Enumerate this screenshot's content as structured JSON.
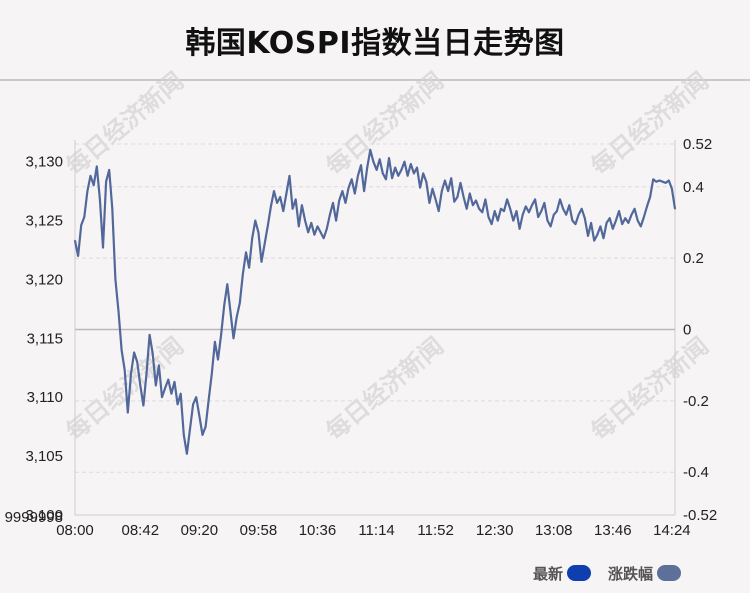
{
  "title": "韩国KOSPI指数当日走势图",
  "watermark": "每日经济新闻",
  "legend": [
    {
      "label": "最新",
      "color": "#0f3fae"
    },
    {
      "label": "涨跌幅",
      "color": "#5c7099"
    }
  ],
  "chart_data": {
    "type": "line",
    "title": "韩国KOSPI指数当日走势图",
    "series": [
      {
        "name": "最新",
        "axis": "left",
        "color": "#52689a",
        "points": [
          [
            "08:00",
            3123.3
          ],
          [
            "08:02",
            3122.0
          ],
          [
            "08:04",
            3124.6
          ],
          [
            "08:06",
            3125.3
          ],
          [
            "08:08",
            3127.5
          ],
          [
            "08:10",
            3128.8
          ],
          [
            "08:12",
            3128.0
          ],
          [
            "08:14",
            3129.6
          ],
          [
            "08:16",
            3126.8
          ],
          [
            "08:18",
            3122.7
          ],
          [
            "08:20",
            3128.3
          ],
          [
            "08:22",
            3129.3
          ],
          [
            "08:24",
            3126.0
          ],
          [
            "08:26",
            3120.0
          ],
          [
            "08:28",
            3117.3
          ],
          [
            "08:30",
            3114.0
          ],
          [
            "08:32",
            3112.3
          ],
          [
            "08:34",
            3108.7
          ],
          [
            "08:36",
            3112.0
          ],
          [
            "08:38",
            3113.8
          ],
          [
            "08:40",
            3113.0
          ],
          [
            "08:42",
            3111.0
          ],
          [
            "08:44",
            3109.3
          ],
          [
            "08:46",
            3112.0
          ],
          [
            "08:48",
            3115.3
          ],
          [
            "08:50",
            3113.7
          ],
          [
            "08:52",
            3111.0
          ],
          [
            "08:54",
            3112.7
          ],
          [
            "08:56",
            3110.0
          ],
          [
            "08:58",
            3110.8
          ],
          [
            "09:00",
            3111.5
          ],
          [
            "09:02",
            3110.3
          ],
          [
            "09:04",
            3111.3
          ],
          [
            "09:06",
            3109.4
          ],
          [
            "09:08",
            3110.3
          ],
          [
            "09:10",
            3106.8
          ],
          [
            "09:12",
            3105.2
          ],
          [
            "09:14",
            3107.3
          ],
          [
            "09:16",
            3109.4
          ],
          [
            "09:18",
            3110.0
          ],
          [
            "09:20",
            3108.4
          ],
          [
            "09:22",
            3106.8
          ],
          [
            "09:24",
            3107.5
          ],
          [
            "09:26",
            3109.8
          ],
          [
            "09:28",
            3112.0
          ],
          [
            "09:30",
            3114.7
          ],
          [
            "09:32",
            3113.2
          ],
          [
            "09:34",
            3115.3
          ],
          [
            "09:36",
            3117.8
          ],
          [
            "09:38",
            3119.6
          ],
          [
            "09:40",
            3117.3
          ],
          [
            "09:42",
            3115.0
          ],
          [
            "09:44",
            3116.8
          ],
          [
            "09:46",
            3118.0
          ],
          [
            "09:48",
            3120.5
          ],
          [
            "09:50",
            3122.3
          ],
          [
            "09:52",
            3121.0
          ],
          [
            "09:54",
            3123.5
          ],
          [
            "09:56",
            3125.0
          ],
          [
            "09:58",
            3124.0
          ],
          [
            "10:00",
            3121.5
          ],
          [
            "10:02",
            3123.0
          ],
          [
            "10:04",
            3124.5
          ],
          [
            "10:06",
            3126.2
          ],
          [
            "10:08",
            3127.5
          ],
          [
            "10:10",
            3126.5
          ],
          [
            "10:12",
            3127.0
          ],
          [
            "10:14",
            3125.8
          ],
          [
            "10:16",
            3127.3
          ],
          [
            "10:18",
            3128.8
          ],
          [
            "10:20",
            3126.0
          ],
          [
            "10:22",
            3126.8
          ],
          [
            "10:24",
            3124.5
          ],
          [
            "10:26",
            3126.3
          ],
          [
            "10:28",
            3125.0
          ],
          [
            "10:30",
            3124.0
          ],
          [
            "10:32",
            3124.8
          ],
          [
            "10:34",
            3123.8
          ],
          [
            "10:36",
            3124.5
          ],
          [
            "10:38",
            3124.0
          ],
          [
            "10:40",
            3123.5
          ],
          [
            "10:42",
            3124.3
          ],
          [
            "10:44",
            3125.5
          ],
          [
            "10:46",
            3126.5
          ],
          [
            "10:48",
            3125.0
          ],
          [
            "10:50",
            3126.7
          ],
          [
            "10:52",
            3127.5
          ],
          [
            "10:54",
            3126.5
          ],
          [
            "10:56",
            3127.8
          ],
          [
            "10:58",
            3128.5
          ],
          [
            "11:00",
            3127.3
          ],
          [
            "11:02",
            3128.8
          ],
          [
            "11:04",
            3129.7
          ],
          [
            "11:06",
            3127.5
          ],
          [
            "11:08",
            3129.5
          ],
          [
            "11:10",
            3131.0
          ],
          [
            "11:12",
            3130.0
          ],
          [
            "11:14",
            3129.3
          ],
          [
            "11:16",
            3130.2
          ],
          [
            "11:18",
            3129.0
          ],
          [
            "11:20",
            3128.5
          ],
          [
            "11:22",
            3130.3
          ],
          [
            "11:24",
            3128.6
          ],
          [
            "11:26",
            3129.5
          ],
          [
            "11:28",
            3128.8
          ],
          [
            "11:30",
            3129.3
          ],
          [
            "11:32",
            3130.0
          ],
          [
            "11:34",
            3128.8
          ],
          [
            "11:36",
            3129.8
          ],
          [
            "11:38",
            3129.0
          ],
          [
            "11:40",
            3129.5
          ],
          [
            "11:42",
            3127.8
          ],
          [
            "11:44",
            3129.0
          ],
          [
            "11:46",
            3128.3
          ],
          [
            "11:48",
            3126.5
          ],
          [
            "11:50",
            3127.7
          ],
          [
            "11:52",
            3126.8
          ],
          [
            "11:54",
            3125.8
          ],
          [
            "11:56",
            3127.5
          ],
          [
            "11:58",
            3128.4
          ],
          [
            "12:00",
            3127.5
          ],
          [
            "12:02",
            3128.6
          ],
          [
            "12:04",
            3126.6
          ],
          [
            "12:06",
            3127.0
          ],
          [
            "12:08",
            3128.2
          ],
          [
            "12:10",
            3127.0
          ],
          [
            "12:12",
            3126.0
          ],
          [
            "12:14",
            3127.3
          ],
          [
            "12:16",
            3126.3
          ],
          [
            "12:18",
            3126.7
          ],
          [
            "12:20",
            3126.0
          ],
          [
            "12:22",
            3125.7
          ],
          [
            "12:24",
            3126.8
          ],
          [
            "12:26",
            3125.3
          ],
          [
            "12:28",
            3124.7
          ],
          [
            "12:30",
            3125.8
          ],
          [
            "12:32",
            3125.0
          ],
          [
            "12:34",
            3126.0
          ],
          [
            "12:36",
            3125.8
          ],
          [
            "12:38",
            3126.8
          ],
          [
            "12:40",
            3126.0
          ],
          [
            "12:42",
            3125.0
          ],
          [
            "12:44",
            3125.8
          ],
          [
            "12:46",
            3124.3
          ],
          [
            "12:48",
            3125.5
          ],
          [
            "12:50",
            3126.2
          ],
          [
            "12:52",
            3125.7
          ],
          [
            "12:54",
            3126.3
          ],
          [
            "12:56",
            3126.8
          ],
          [
            "12:58",
            3125.3
          ],
          [
            "13:00",
            3125.8
          ],
          [
            "13:02",
            3126.5
          ],
          [
            "13:04",
            3125.0
          ],
          [
            "13:06",
            3124.5
          ],
          [
            "13:08",
            3125.5
          ],
          [
            "13:10",
            3125.8
          ],
          [
            "13:12",
            3126.8
          ],
          [
            "13:14",
            3126.0
          ],
          [
            "13:16",
            3125.5
          ],
          [
            "13:18",
            3126.3
          ],
          [
            "13:20",
            3125.0
          ],
          [
            "13:22",
            3124.7
          ],
          [
            "13:24",
            3125.5
          ],
          [
            "13:26",
            3126.0
          ],
          [
            "13:28",
            3125.2
          ],
          [
            "13:30",
            3123.7
          ],
          [
            "13:32",
            3124.8
          ],
          [
            "13:34",
            3123.3
          ],
          [
            "13:36",
            3123.8
          ],
          [
            "13:38",
            3124.5
          ],
          [
            "13:40",
            3123.5
          ],
          [
            "13:42",
            3124.8
          ],
          [
            "13:44",
            3125.2
          ],
          [
            "13:46",
            3124.3
          ],
          [
            "13:48",
            3125.0
          ],
          [
            "13:50",
            3125.8
          ],
          [
            "13:52",
            3124.7
          ],
          [
            "13:54",
            3125.2
          ],
          [
            "13:56",
            3124.8
          ],
          [
            "13:58",
            3125.5
          ],
          [
            "14:00",
            3126.0
          ],
          [
            "14:02",
            3125.0
          ],
          [
            "14:04",
            3124.5
          ],
          [
            "14:06",
            3125.3
          ],
          [
            "14:08",
            3126.2
          ],
          [
            "14:10",
            3127.0
          ],
          [
            "14:12",
            3128.5
          ],
          [
            "14:14",
            3128.3
          ],
          [
            "14:16",
            3128.4
          ],
          [
            "14:18",
            3128.3
          ],
          [
            "14:20",
            3128.2
          ],
          [
            "14:22",
            3128.4
          ],
          [
            "14:24",
            3127.7
          ],
          [
            "14:26",
            3126.0
          ]
        ]
      },
      {
        "name": "涨跌幅",
        "axis": "right",
        "color": "#5c7099"
      }
    ],
    "x_ticks": [
      "08:00",
      "08:42",
      "09:20",
      "09:58",
      "10:36",
      "11:14",
      "11:52",
      "12:30",
      "13:08",
      "13:46",
      "14:24"
    ],
    "y_left_ticks": [
      "3,100",
      "3,105",
      "3,110",
      "3,115",
      "3,120",
      "3,125",
      "3,130"
    ],
    "y_left_bottom_label": "9999998",
    "y_left_range": [
      3100,
      3131.5
    ],
    "y_right_ticks": [
      "-0.52",
      "-0.4",
      "-0.2",
      "0",
      "0.2",
      "0.4",
      "0.52"
    ],
    "y_right_range": [
      -0.52,
      0.52
    ],
    "zero_line": true,
    "grid": true,
    "legend_position": "bottom-right"
  }
}
